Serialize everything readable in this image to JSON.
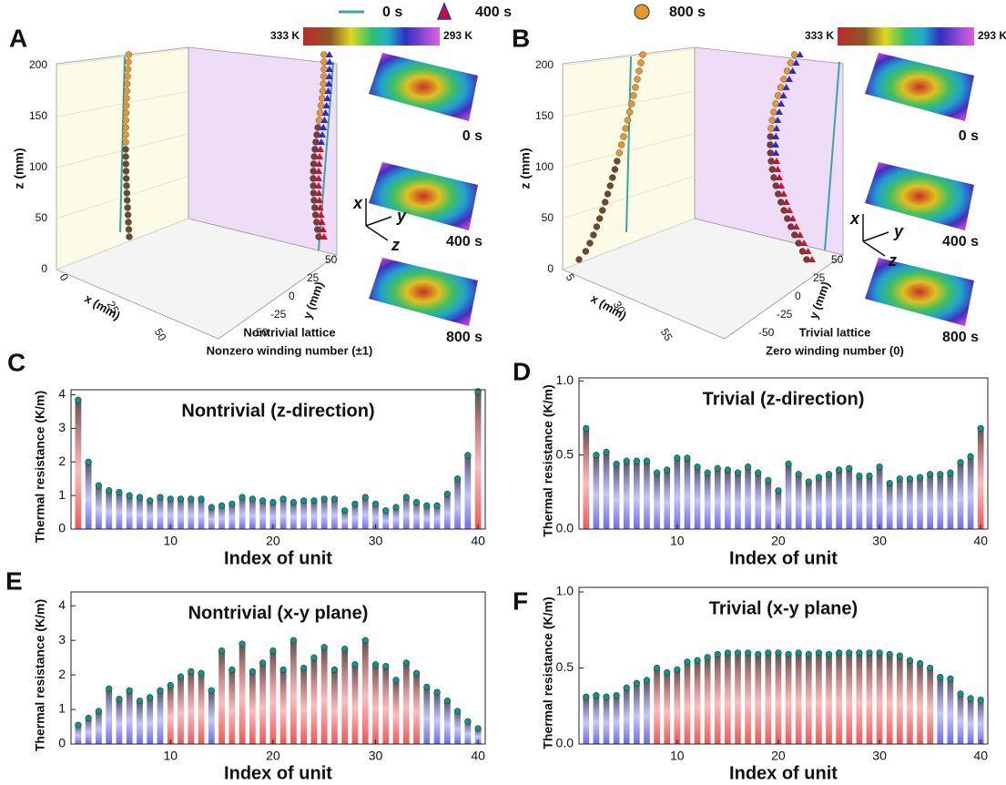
{
  "legend": {
    "entries": [
      "0 s",
      "400 s",
      "800 s"
    ],
    "colors": [
      "#3aa6a0",
      "#d0102a",
      "#e8962e"
    ]
  },
  "panels": [
    {
      "letter": "A",
      "colorbar": {
        "high": "333 K",
        "low": "293 K"
      },
      "z_label": "z (mm)",
      "z_ticks": [
        0,
        50,
        100,
        150,
        200
      ],
      "x_label": "x (mm)",
      "x_ticks": [
        0,
        25,
        50
      ],
      "y_label": "y (mm)",
      "y_ticks": [
        50,
        25,
        0,
        -25,
        -50
      ],
      "axes": [
        "x",
        "y",
        "z"
      ],
      "insets": [
        "0 s",
        "400 s",
        "800 s"
      ],
      "captions": [
        "Nontrivial lattice",
        "Nonzero winding number (±1)"
      ],
      "caption_color": "#e31a1c"
    },
    {
      "letter": "B",
      "colorbar": {
        "high": "333 K",
        "low": "293 K"
      },
      "z_label": "z (mm)",
      "z_ticks": [
        0,
        50,
        100,
        150,
        200
      ],
      "x_label": "x (mm)",
      "x_ticks": [
        5,
        30,
        55
      ],
      "y_label": "y (mm)",
      "y_ticks": [
        50,
        25,
        0,
        -25,
        -50
      ],
      "axes": [
        "x",
        "y",
        "z"
      ],
      "insets": [
        "0 s",
        "400 s",
        "800 s"
      ],
      "captions": [
        "Trivial lattice",
        "Zero winding number (0)"
      ],
      "caption_color": "#111111"
    }
  ],
  "chart_data": [
    {
      "type": "bar",
      "panel_label": "C",
      "title": "Nontrivial (z-direction)",
      "title_color": "#e31a1c",
      "x_label": "Index of unit",
      "y_label": "Thermal resistance (K/m)",
      "x": [
        1,
        2,
        3,
        4,
        5,
        6,
        7,
        8,
        9,
        10,
        11,
        12,
        13,
        14,
        15,
        16,
        17,
        18,
        19,
        20,
        21,
        22,
        23,
        24,
        25,
        26,
        27,
        28,
        29,
        30,
        31,
        32,
        33,
        34,
        35,
        36,
        37,
        38,
        39,
        40
      ],
      "values": [
        3.85,
        2.0,
        1.3,
        1.15,
        1.1,
        1.0,
        0.95,
        0.85,
        0.95,
        0.9,
        0.9,
        0.9,
        0.9,
        0.65,
        0.7,
        0.75,
        0.95,
        0.9,
        0.85,
        0.8,
        0.9,
        0.8,
        0.85,
        0.85,
        0.9,
        0.9,
        0.55,
        0.75,
        0.95,
        0.75,
        0.55,
        0.65,
        0.95,
        0.8,
        0.7,
        0.7,
        1.05,
        1.5,
        2.2,
        4.1
      ],
      "colors": [
        "#ee4444",
        "#5c5ce6",
        "#5c5ce6",
        "#5c5ce6",
        "#5c5ce6",
        "#5c5ce6",
        "#5c5ce6",
        "#5c5ce6",
        "#5c5ce6",
        "#5c5ce6",
        "#5c5ce6",
        "#5c5ce6",
        "#5c5ce6",
        "#5c5ce6",
        "#5c5ce6",
        "#5c5ce6",
        "#5c5ce6",
        "#5c5ce6",
        "#5c5ce6",
        "#5c5ce6",
        "#5c5ce6",
        "#5c5ce6",
        "#5c5ce6",
        "#5c5ce6",
        "#5c5ce6",
        "#5c5ce6",
        "#5c5ce6",
        "#5c5ce6",
        "#5c5ce6",
        "#5c5ce6",
        "#5c5ce6",
        "#5c5ce6",
        "#5c5ce6",
        "#5c5ce6",
        "#5c5ce6",
        "#5c5ce6",
        "#5c5ce6",
        "#5c5ce6",
        "#5c5ce6",
        "#ee4444"
      ],
      "xlim": [
        0.3,
        40.7
      ],
      "xticks": [
        10,
        20,
        30,
        40
      ],
      "ylim": [
        0,
        4.15
      ],
      "yticks": [
        0,
        1,
        2,
        3,
        4
      ]
    },
    {
      "type": "bar",
      "panel_label": "D",
      "title": "Trivial (z-direction)",
      "title_color": "#111111",
      "x_label": "Index of unit",
      "y_label": "Thermal resistance (K/m)",
      "x": [
        1,
        2,
        3,
        4,
        5,
        6,
        7,
        8,
        9,
        10,
        11,
        12,
        13,
        14,
        15,
        16,
        17,
        18,
        19,
        20,
        21,
        22,
        23,
        24,
        25,
        26,
        27,
        28,
        29,
        30,
        31,
        32,
        33,
        34,
        35,
        36,
        37,
        38,
        39,
        40
      ],
      "values": [
        0.68,
        0.5,
        0.52,
        0.44,
        0.46,
        0.46,
        0.46,
        0.38,
        0.4,
        0.48,
        0.48,
        0.42,
        0.38,
        0.41,
        0.4,
        0.38,
        0.42,
        0.38,
        0.33,
        0.26,
        0.44,
        0.37,
        0.32,
        0.35,
        0.37,
        0.4,
        0.41,
        0.36,
        0.36,
        0.42,
        0.31,
        0.34,
        0.34,
        0.35,
        0.37,
        0.37,
        0.38,
        0.45,
        0.49,
        0.68
      ],
      "colors": [
        "#ee4444",
        "#5c5ce6",
        "#5c5ce6",
        "#5c5ce6",
        "#5c5ce6",
        "#5c5ce6",
        "#5c5ce6",
        "#5c5ce6",
        "#5c5ce6",
        "#5c5ce6",
        "#5c5ce6",
        "#5c5ce6",
        "#5c5ce6",
        "#5c5ce6",
        "#5c5ce6",
        "#5c5ce6",
        "#5c5ce6",
        "#5c5ce6",
        "#5c5ce6",
        "#5c5ce6",
        "#5c5ce6",
        "#5c5ce6",
        "#5c5ce6",
        "#5c5ce6",
        "#5c5ce6",
        "#5c5ce6",
        "#5c5ce6",
        "#5c5ce6",
        "#5c5ce6",
        "#5c5ce6",
        "#5c5ce6",
        "#5c5ce6",
        "#5c5ce6",
        "#5c5ce6",
        "#5c5ce6",
        "#5c5ce6",
        "#5c5ce6",
        "#5c5ce6",
        "#5c5ce6",
        "#ee4444"
      ],
      "xlim": [
        0.3,
        40.7
      ],
      "xticks": [
        10,
        20,
        30,
        40
      ],
      "ylim": [
        0,
        1.02
      ],
      "yticks": [
        {
          "value": 0,
          "label": "0.0"
        },
        {
          "value": 0.5,
          "label": "0.5"
        },
        {
          "value": 1,
          "label": "1.0"
        }
      ]
    },
    {
      "type": "bar",
      "panel_label": "E",
      "title": "Nontrivial (x-y plane)",
      "title_color": "#e31a1c",
      "x_label": "Index of unit",
      "y_label": "Thermal resistance (K/m)",
      "x": [
        1,
        2,
        3,
        4,
        5,
        6,
        7,
        8,
        9,
        10,
        11,
        12,
        13,
        14,
        15,
        16,
        17,
        18,
        19,
        20,
        21,
        22,
        23,
        24,
        25,
        26,
        27,
        28,
        29,
        30,
        31,
        32,
        33,
        34,
        35,
        36,
        37,
        38,
        39,
        40
      ],
      "values": [
        0.55,
        0.75,
        0.95,
        1.6,
        1.3,
        1.55,
        1.25,
        1.35,
        1.55,
        1.7,
        1.95,
        2.1,
        2.05,
        1.55,
        2.7,
        2.15,
        2.9,
        2.1,
        2.35,
        2.7,
        2.15,
        3.0,
        2.2,
        2.5,
        2.8,
        2.15,
        2.75,
        2.3,
        3.0,
        2.3,
        2.25,
        1.85,
        2.35,
        2.05,
        1.65,
        1.5,
        1.25,
        0.95,
        0.65,
        0.45
      ],
      "colors": [
        "#5c5ce6",
        "#5c5ce6",
        "#5c5ce6",
        "#5c5ce6",
        "#5c5ce6",
        "#5c5ce6",
        "#5c5ce6",
        "#5c5ce6",
        "#5c5ce6",
        "#ee4444",
        "#ee4444",
        "#ee4444",
        "#ee4444",
        "#5c5ce6",
        "#ee4444",
        "#ee4444",
        "#ee4444",
        "#ee4444",
        "#ee4444",
        "#ee4444",
        "#ee4444",
        "#ee4444",
        "#ee4444",
        "#ee4444",
        "#ee4444",
        "#ee4444",
        "#ee4444",
        "#ee4444",
        "#ee4444",
        "#ee4444",
        "#ee4444",
        "#ee4444",
        "#ee4444",
        "#ee4444",
        "#5c5ce6",
        "#5c5ce6",
        "#5c5ce6",
        "#5c5ce6",
        "#5c5ce6",
        "#5c5ce6"
      ],
      "xlim": [
        0.3,
        40.7
      ],
      "xticks": [
        10,
        20,
        30,
        40
      ],
      "ylim": [
        0,
        4.4
      ],
      "yticks": [
        0,
        1,
        2,
        3,
        4
      ]
    },
    {
      "type": "bar",
      "panel_label": "F",
      "title": "Trivial (x-y plane)",
      "title_color": "#111111",
      "x_label": "Index of unit",
      "y_label": "Thermal resistance (K/m)",
      "x": [
        1,
        2,
        3,
        4,
        5,
        6,
        7,
        8,
        9,
        10,
        11,
        12,
        13,
        14,
        15,
        16,
        17,
        18,
        19,
        20,
        21,
        22,
        23,
        24,
        25,
        26,
        27,
        28,
        29,
        30,
        31,
        32,
        33,
        34,
        35,
        36,
        37,
        38,
        39,
        40
      ],
      "values": [
        0.31,
        0.32,
        0.31,
        0.32,
        0.37,
        0.4,
        0.42,
        0.5,
        0.47,
        0.49,
        0.54,
        0.55,
        0.57,
        0.59,
        0.6,
        0.6,
        0.6,
        0.59,
        0.6,
        0.6,
        0.59,
        0.6,
        0.59,
        0.6,
        0.59,
        0.6,
        0.6,
        0.6,
        0.6,
        0.6,
        0.59,
        0.58,
        0.55,
        0.53,
        0.5,
        0.44,
        0.43,
        0.33,
        0.3,
        0.29
      ],
      "colors": [
        "#5c5ce6",
        "#5c5ce6",
        "#5c5ce6",
        "#5c5ce6",
        "#5c5ce6",
        "#5c5ce6",
        "#5c5ce6",
        "#ee4444",
        "#ee4444",
        "#ee4444",
        "#ee4444",
        "#ee4444",
        "#ee4444",
        "#ee4444",
        "#ee4444",
        "#ee4444",
        "#ee4444",
        "#ee4444",
        "#ee4444",
        "#ee4444",
        "#ee4444",
        "#ee4444",
        "#ee4444",
        "#ee4444",
        "#ee4444",
        "#ee4444",
        "#ee4444",
        "#ee4444",
        "#ee4444",
        "#ee4444",
        "#ee4444",
        "#ee4444",
        "#ee4444",
        "#ee4444",
        "#ee4444",
        "#5c5ce6",
        "#5c5ce6",
        "#5c5ce6",
        "#5c5ce6",
        "#5c5ce6"
      ],
      "xlim": [
        0.3,
        40.7
      ],
      "xticks": [
        10,
        20,
        30,
        40
      ],
      "ylim": [
        0,
        1.03
      ],
      "yticks": [
        {
          "value": 0,
          "label": "0.0"
        },
        {
          "value": 0.5,
          "label": "0.5"
        },
        {
          "value": 1,
          "label": "1.0"
        }
      ]
    }
  ]
}
